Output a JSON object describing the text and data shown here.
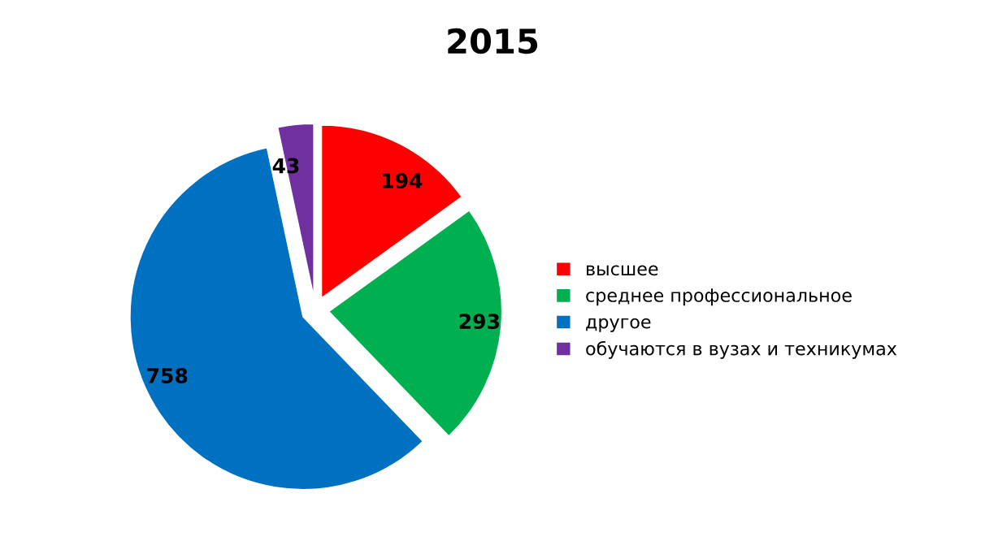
{
  "chart_data": {
    "type": "pie",
    "title": "2015",
    "categories": [
      "высшее",
      "среднее профессиональное",
      "другое",
      "обучаются в вузах и техникумах"
    ],
    "values": [
      194,
      293,
      758,
      43
    ],
    "colors": [
      "#ff0000",
      "#00b050",
      "#0070c0",
      "#7030a0"
    ],
    "data_labels": true,
    "legend": "right"
  }
}
